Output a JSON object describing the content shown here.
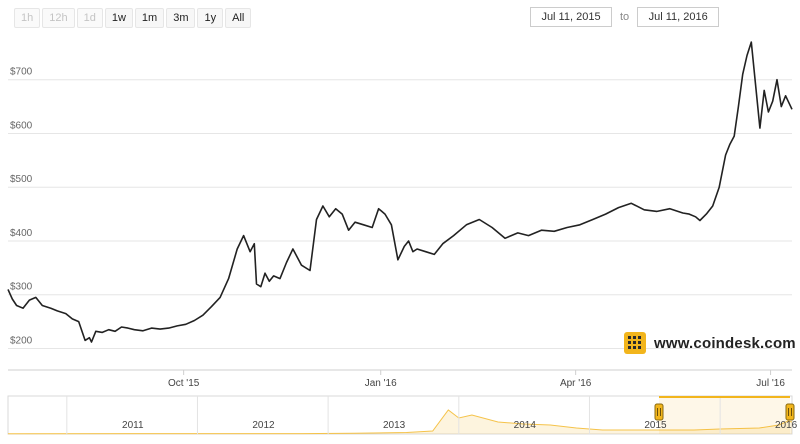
{
  "range_buttons": [
    {
      "label": "1h",
      "enabled": false
    },
    {
      "label": "12h",
      "enabled": false
    },
    {
      "label": "1d",
      "enabled": false
    },
    {
      "label": "1w",
      "enabled": true
    },
    {
      "label": "1m",
      "enabled": true
    },
    {
      "label": "3m",
      "enabled": true
    },
    {
      "label": "1y",
      "enabled": true
    },
    {
      "label": "All",
      "enabled": true
    }
  ],
  "date_range": {
    "from": "Jul 11, 2015",
    "to_label": "to",
    "to": "Jul 11, 2016"
  },
  "brand": {
    "text": "www.coindesk.com",
    "icon": "coindesk-logo-icon",
    "color": "#f2b51c"
  },
  "navigator": {
    "years": [
      "2011",
      "2012",
      "2013",
      "2014",
      "2015",
      "2016"
    ],
    "series_color": "#f5c34a",
    "selection_color": "#f2b51c",
    "handle_icon": "grip-handle-icon"
  },
  "chart_data": {
    "type": "line",
    "title": "",
    "xlabel": "",
    "ylabel": "",
    "ylim": [
      160,
      785
    ],
    "yticks": [
      200,
      300,
      400,
      500,
      600,
      700
    ],
    "ytick_labels": [
      "$200",
      "$300",
      "$400",
      "$500",
      "$600",
      "$700"
    ],
    "xticks": [
      {
        "date": "2015-10-01",
        "label": "Oct '15"
      },
      {
        "date": "2016-01-01",
        "label": "Jan '16"
      },
      {
        "date": "2016-04-01",
        "label": "Apr '16"
      },
      {
        "date": "2016-07-01",
        "label": "Jul '16"
      }
    ],
    "xlim": [
      "2015-07-11",
      "2016-07-11"
    ],
    "grid": true,
    "line_color": "#222222",
    "series": [
      {
        "x": [
          "2015-07-11",
          "2015-07-13",
          "2015-07-15",
          "2015-07-18",
          "2015-07-21",
          "2015-07-24",
          "2015-07-27",
          "2015-07-31",
          "2015-08-03",
          "2015-08-07",
          "2015-08-10",
          "2015-08-13",
          "2015-08-16",
          "2015-08-18",
          "2015-08-19",
          "2015-08-21",
          "2015-08-24",
          "2015-08-27",
          "2015-08-30",
          "2015-09-02",
          "2015-09-05",
          "2015-09-08",
          "2015-09-12",
          "2015-09-16",
          "2015-09-20",
          "2015-09-24",
          "2015-09-28",
          "2015-10-02",
          "2015-10-06",
          "2015-10-10",
          "2015-10-14",
          "2015-10-18",
          "2015-10-22",
          "2015-10-26",
          "2015-10-29",
          "2015-11-01",
          "2015-11-03",
          "2015-11-04",
          "2015-11-06",
          "2015-11-08",
          "2015-11-10",
          "2015-11-12",
          "2015-11-15",
          "2015-11-18",
          "2015-11-21",
          "2015-11-25",
          "2015-11-29",
          "2015-12-02",
          "2015-12-05",
          "2015-12-08",
          "2015-12-11",
          "2015-12-14",
          "2015-12-17",
          "2015-12-20",
          "2015-12-24",
          "2015-12-28",
          "2015-12-31",
          "2016-01-03",
          "2016-01-06",
          "2016-01-09",
          "2016-01-12",
          "2016-01-14",
          "2016-01-16",
          "2016-01-18",
          "2016-01-22",
          "2016-01-26",
          "2016-01-30",
          "2016-02-04",
          "2016-02-10",
          "2016-02-16",
          "2016-02-22",
          "2016-02-28",
          "2016-03-05",
          "2016-03-10",
          "2016-03-16",
          "2016-03-22",
          "2016-03-28",
          "2016-04-03",
          "2016-04-09",
          "2016-04-15",
          "2016-04-21",
          "2016-04-27",
          "2016-05-03",
          "2016-05-09",
          "2016-05-15",
          "2016-05-21",
          "2016-05-24",
          "2016-05-27",
          "2016-05-29",
          "2016-06-01",
          "2016-06-04",
          "2016-06-07",
          "2016-06-10",
          "2016-06-12",
          "2016-06-14",
          "2016-06-16",
          "2016-06-18",
          "2016-06-20",
          "2016-06-22",
          "2016-06-24",
          "2016-06-26",
          "2016-06-28",
          "2016-06-30",
          "2016-07-02",
          "2016-07-04",
          "2016-07-06",
          "2016-07-08",
          "2016-07-11"
        ],
        "y": [
          310,
          292,
          280,
          275,
          290,
          295,
          280,
          275,
          270,
          265,
          255,
          250,
          215,
          220,
          212,
          232,
          230,
          235,
          232,
          240,
          238,
          235,
          233,
          238,
          236,
          238,
          242,
          245,
          252,
          262,
          278,
          295,
          330,
          385,
          410,
          380,
          395,
          320,
          315,
          340,
          325,
          335,
          330,
          360,
          385,
          355,
          345,
          440,
          465,
          445,
          460,
          450,
          420,
          435,
          430,
          425,
          460,
          450,
          430,
          365,
          390,
          400,
          380,
          385,
          380,
          375,
          395,
          410,
          430,
          440,
          425,
          405,
          415,
          410,
          420,
          418,
          425,
          430,
          440,
          450,
          462,
          470,
          458,
          455,
          460,
          452,
          450,
          445,
          438,
          450,
          465,
          500,
          560,
          580,
          595,
          650,
          710,
          745,
          770,
          690,
          610,
          680,
          640,
          660,
          700,
          650,
          670,
          645
        ]
      }
    ]
  }
}
